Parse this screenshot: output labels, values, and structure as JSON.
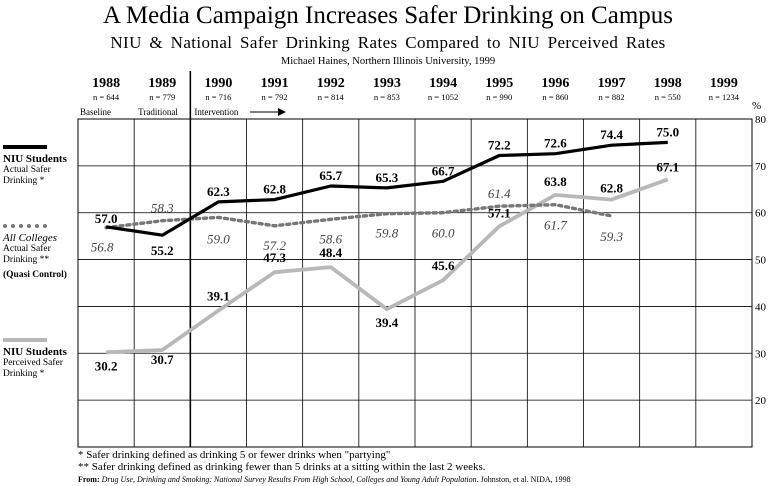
{
  "header": {
    "title": "A Media Campaign Increases Safer Drinking on Campus",
    "subtitle": "NIU & National Safer Drinking Rates Compared to NIU Perceived Rates",
    "credit": "Michael Haines, Northern Illinois University, 1999"
  },
  "columns": {
    "years": [
      "1988",
      "1989",
      "1990",
      "1991",
      "1992",
      "1993",
      "1994",
      "1995",
      "1996",
      "1997",
      "1998",
      "1999"
    ],
    "n": [
      "n = 644",
      "n = 779",
      "n = 716",
      "n = 792",
      "n = 814",
      "n = 853",
      "n = 1052",
      "n = 990",
      "n = 860",
      "n = 882",
      "n = 550",
      "n = 1234"
    ]
  },
  "phases": {
    "baseline": "Baseline",
    "traditional": "Traditional",
    "intervention": "Intervention"
  },
  "legend": {
    "actual": {
      "title": "NIU Students",
      "line1": "Actual Safer",
      "line2": "Drinking *"
    },
    "colleges": {
      "title": "All Colleges",
      "line1": "Actual Safer",
      "line2": "Drinking **",
      "extra": "(Quasi Control)"
    },
    "perceived": {
      "title": "NIU Students",
      "line1": "Perceived Safer",
      "line2": "Drinking *"
    }
  },
  "footnotes": {
    "note1": "* Safer drinking defined as drinking 5 or fewer drinks when \"partying\"",
    "note2": "** Safer drinking defined as drinking fewer than 5 drinks at a sitting within the last 2 weeks.",
    "source_label": "From:",
    "source_italic": "Drug Use, Drinking and Smoking: National Survey Results From High School, Colleges and Young Adult Population.",
    "source_rest": "Johnston, et al. NIDA, 1998"
  },
  "colors": {
    "actual": "#000000",
    "colleges": "#777777",
    "perceived": "#b8b8b8",
    "grid": "#000000"
  },
  "chart_data": {
    "type": "line",
    "title": "A Media Campaign Increases Safer Drinking on Campus",
    "subtitle": "NIU & National Safer Drinking Rates Compared to NIU Perceived Rates",
    "xlabel": "",
    "ylabel": "%",
    "ylim": [
      10,
      80
    ],
    "yticks": [
      20,
      30,
      40,
      50,
      60,
      70,
      80
    ],
    "grid": true,
    "x": [
      "1988",
      "1989",
      "1990",
      "1991",
      "1992",
      "1993",
      "1994",
      "1995",
      "1996",
      "1997",
      "1998",
      "1999"
    ],
    "series": [
      {
        "name": "NIU Students Actual Safer Drinking *",
        "style": "solid-black",
        "values": [
          57.0,
          55.2,
          62.3,
          62.8,
          65.7,
          65.3,
          66.7,
          72.2,
          72.6,
          74.4,
          75.0,
          null
        ],
        "labels": [
          "57.0",
          "55.2",
          "62.3",
          "62.8",
          "65.7",
          "65.3",
          "66.7",
          "72.2",
          "72.6",
          "74.4",
          "75.0",
          null
        ]
      },
      {
        "name": "All Colleges Actual Safer Drinking **",
        "style": "dotted-gray",
        "values": [
          56.8,
          58.3,
          59.0,
          57.2,
          58.6,
          59.8,
          60.0,
          61.4,
          61.7,
          59.3,
          null,
          null
        ],
        "labels": [
          "56.8",
          "58.3",
          "59.0",
          "57.2",
          "58.6",
          "59.8",
          "60.0",
          "61.4",
          "61.7",
          "59.3",
          null,
          null
        ]
      },
      {
        "name": "NIU Students Perceived Safer Drinking *",
        "style": "solid-lightgray",
        "values": [
          30.2,
          30.7,
          39.1,
          47.3,
          48.4,
          39.4,
          45.6,
          57.1,
          63.8,
          62.8,
          67.1,
          null
        ],
        "labels": [
          "30.2",
          "30.7",
          "39.1",
          "47.3",
          "48.4",
          "39.4",
          "45.6",
          "57.1",
          "63.8",
          "62.8",
          "67.1",
          null
        ]
      }
    ]
  }
}
